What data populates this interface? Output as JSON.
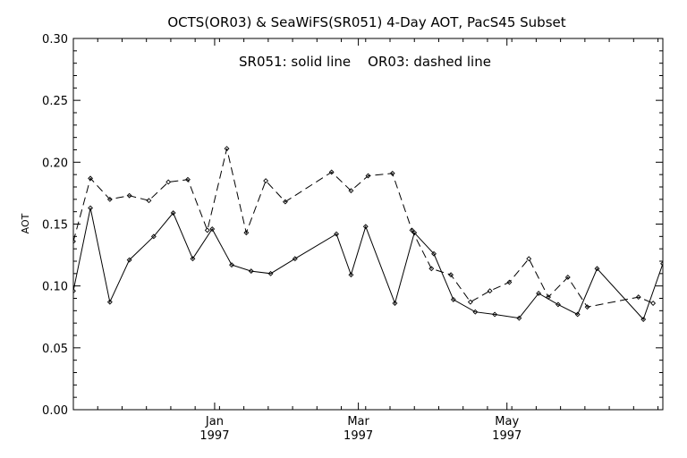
{
  "chart_data": {
    "type": "line",
    "title": "OCTS(OR03) & SeaWiFS(SR051) 4-Day AOT, PacS45 Subset",
    "annotation": "SR051: solid line    OR03: dashed line",
    "xlabel": "",
    "ylabel": "AOT",
    "ylim": [
      0.0,
      0.3
    ],
    "xlim": [
      "1996-11-04",
      "1997-07-04"
    ],
    "y_ticks": [
      "0.00",
      "0.05",
      "0.10",
      "0.15",
      "0.20",
      "0.25",
      "0.30"
    ],
    "x_ticks": [
      {
        "month": "Jan",
        "year": "1997",
        "date": "1997-01-01"
      },
      {
        "month": "Mar",
        "year": "1997",
        "date": "1997-03-01"
      },
      {
        "month": "May",
        "year": "1997",
        "date": "1997-05-01"
      }
    ],
    "grid": false,
    "legend": "none",
    "series": [
      {
        "name": "SR051",
        "style": "solid",
        "points": [
          {
            "x": "1996-11-04",
            "y": 0.096
          },
          {
            "x": "1996-11-11",
            "y": 0.163
          },
          {
            "x": "1996-11-19",
            "y": 0.087
          },
          {
            "x": "1996-11-27",
            "y": 0.121
          },
          {
            "x": "1996-12-07",
            "y": 0.14
          },
          {
            "x": "1996-12-15",
            "y": 0.159
          },
          {
            "x": "1996-12-23",
            "y": 0.122
          },
          {
            "x": "1996-12-31",
            "y": 0.146
          },
          {
            "x": "1997-01-08",
            "y": 0.117
          },
          {
            "x": "1997-01-16",
            "y": 0.112
          },
          {
            "x": "1997-01-24",
            "y": 0.11
          },
          {
            "x": "1997-02-03",
            "y": 0.122
          },
          {
            "x": "1997-02-20",
            "y": 0.142
          },
          {
            "x": "1997-02-26",
            "y": 0.109
          },
          {
            "x": "1997-03-04",
            "y": 0.148
          },
          {
            "x": "1997-03-16",
            "y": 0.086
          },
          {
            "x": "1997-03-24",
            "y": 0.143
          },
          {
            "x": "1997-04-01",
            "y": 0.126
          },
          {
            "x": "1997-04-09",
            "y": 0.089
          },
          {
            "x": "1997-04-18",
            "y": 0.079
          },
          {
            "x": "1997-04-26",
            "y": 0.077
          },
          {
            "x": "1997-05-06",
            "y": 0.074
          },
          {
            "x": "1997-05-14",
            "y": 0.094
          },
          {
            "x": "1997-05-22",
            "y": 0.085
          },
          {
            "x": "1997-05-30",
            "y": 0.077
          },
          {
            "x": "1997-06-07",
            "y": 0.114
          },
          {
            "x": "1997-06-26",
            "y": 0.073
          },
          {
            "x": "1997-07-04",
            "y": 0.118
          }
        ]
      },
      {
        "name": "OR03",
        "style": "dashed",
        "points": [
          {
            "x": "1996-11-04",
            "y": 0.136
          },
          {
            "x": "1996-11-11",
            "y": 0.187
          },
          {
            "x": "1996-11-19",
            "y": 0.17
          },
          {
            "x": "1996-11-27",
            "y": 0.173
          },
          {
            "x": "1996-12-05",
            "y": 0.169
          },
          {
            "x": "1996-12-13",
            "y": 0.184
          },
          {
            "x": "1996-12-21",
            "y": 0.186
          },
          {
            "x": "1996-12-29",
            "y": 0.145
          },
          {
            "x": "1997-01-06",
            "y": 0.211
          },
          {
            "x": "1997-01-14",
            "y": 0.143
          },
          {
            "x": "1997-01-22",
            "y": 0.185
          },
          {
            "x": "1997-01-30",
            "y": 0.168
          },
          {
            "x": "1997-02-18",
            "y": 0.192
          },
          {
            "x": "1997-02-26",
            "y": 0.177
          },
          {
            "x": "1997-03-05",
            "y": 0.189
          },
          {
            "x": "1997-03-15",
            "y": 0.191
          },
          {
            "x": "1997-03-23",
            "y": 0.145
          },
          {
            "x": "1997-03-31",
            "y": 0.114
          },
          {
            "x": "1997-04-08",
            "y": 0.109
          },
          {
            "x": "1997-04-16",
            "y": 0.087
          },
          {
            "x": "1997-04-24",
            "y": 0.096
          },
          {
            "x": "1997-05-02",
            "y": 0.103
          },
          {
            "x": "1997-05-10",
            "y": 0.122
          },
          {
            "x": "1997-05-18",
            "y": 0.091
          },
          {
            "x": "1997-05-26",
            "y": 0.107
          },
          {
            "x": "1997-06-03",
            "y": 0.083
          },
          {
            "x": "1997-06-24",
            "y": 0.091
          },
          {
            "x": "1997-06-30",
            "y": 0.086
          }
        ]
      }
    ]
  }
}
